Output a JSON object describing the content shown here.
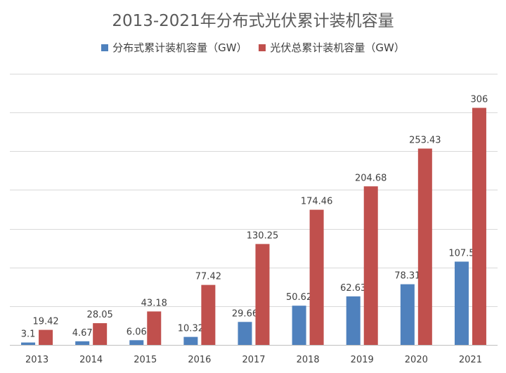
{
  "chart_data": {
    "type": "bar",
    "title": "2013-2021年分布式光伏累计装机容量",
    "categories": [
      "2013",
      "2014",
      "2015",
      "2016",
      "2017",
      "2018",
      "2019",
      "2020",
      "2021"
    ],
    "series": [
      {
        "name": "分布式累计装机容量（GW）",
        "color": "#4f81bd",
        "values": [
          3.1,
          4.67,
          6.06,
          10.32,
          29.66,
          50.62,
          62.63,
          78.31,
          107.5
        ],
        "labels": [
          "3.1",
          "4.67",
          "6.06",
          "10.32",
          "29.66",
          "50.62",
          "62.63",
          "78.31",
          "107.5"
        ]
      },
      {
        "name": "光伏总累计装机容量（GW）",
        "color": "#c0504d",
        "values": [
          19.42,
          28.05,
          43.18,
          77.42,
          130.25,
          174.46,
          204.68,
          253.43,
          306
        ],
        "labels": [
          "19.42",
          "28.05",
          "43.18",
          "77.42",
          "130.25",
          "174.46",
          "204.68",
          "253.43",
          "306"
        ]
      }
    ],
    "ylim": [
      0,
      350
    ],
    "y_gridlines": [
      50,
      100,
      150,
      200,
      250,
      300,
      350
    ],
    "grid": true,
    "legend_position": "top"
  }
}
